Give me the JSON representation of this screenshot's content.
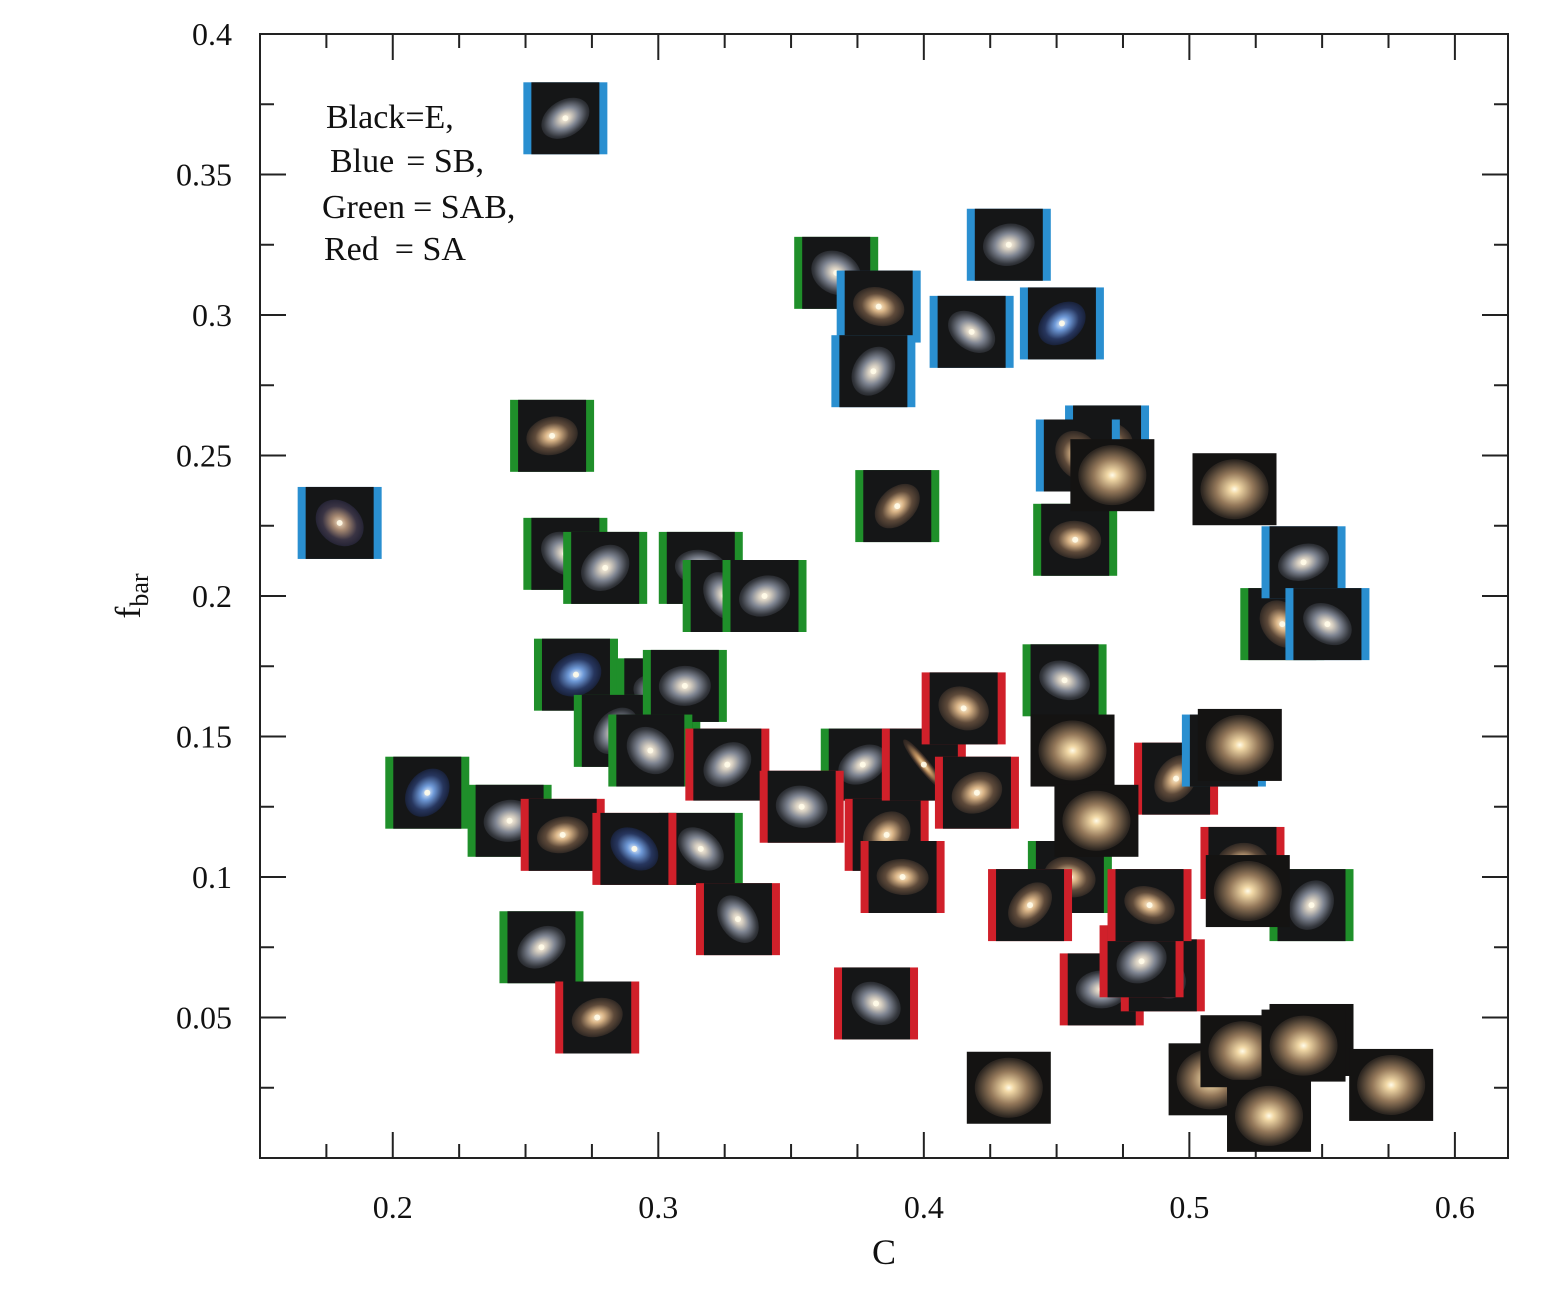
{
  "chart_data": {
    "type": "scatter",
    "title": "",
    "xlabel": "C",
    "ylabel_main": "f",
    "ylabel_sub": "bar",
    "xlim": [
      0.15,
      0.62
    ],
    "ylim": [
      0.0,
      0.4
    ],
    "x_ticks": [
      0.2,
      0.3,
      0.4,
      0.5,
      0.6
    ],
    "x_tick_labels": [
      "0.2",
      "0.3",
      "0.4",
      "0.5",
      "0.6"
    ],
    "y_ticks": [
      0.05,
      0.1,
      0.15,
      0.2,
      0.25,
      0.3,
      0.35,
      0.4
    ],
    "y_tick_labels": [
      "0.05",
      "0.1",
      "0.15",
      "0.2",
      "0.25",
      "0.3",
      "0.35",
      "0.4"
    ],
    "grid": false,
    "legend": {
      "placement": "top-left",
      "lines": [
        [
          "Black",
          "=E,"
        ],
        [
          "Blue",
          "= SB,"
        ],
        [
          "Green",
          "= SAB,"
        ],
        [
          "Red",
          "= SA"
        ]
      ]
    },
    "marker": "galaxy thumbnail images with colored side borders",
    "colors": {
      "E": "#111111",
      "SB": "#2a8fd0",
      "SAB": "#1f8f2a",
      "SA": "#d0202a"
    },
    "series": [
      {
        "name": "SB",
        "points": [
          {
            "x": 0.18,
            "y": 0.226,
            "tone": "warm-faint"
          },
          {
            "x": 0.265,
            "y": 0.37,
            "tone": "spiral"
          },
          {
            "x": 0.383,
            "y": 0.303,
            "tone": "warm"
          },
          {
            "x": 0.381,
            "y": 0.28,
            "tone": "spiral"
          },
          {
            "x": 0.432,
            "y": 0.325,
            "tone": "spiral"
          },
          {
            "x": 0.418,
            "y": 0.294,
            "tone": "spiral"
          },
          {
            "x": 0.452,
            "y": 0.297,
            "tone": "blue"
          },
          {
            "x": 0.469,
            "y": 0.255,
            "tone": "warm"
          },
          {
            "x": 0.458,
            "y": 0.25,
            "tone": "warm"
          },
          {
            "x": 0.543,
            "y": 0.212,
            "tone": "spiral"
          },
          {
            "x": 0.552,
            "y": 0.19,
            "tone": "spiral"
          },
          {
            "x": 0.513,
            "y": 0.145,
            "tone": "warm"
          }
        ]
      },
      {
        "name": "SAB",
        "points": [
          {
            "x": 0.26,
            "y": 0.257,
            "tone": "warm"
          },
          {
            "x": 0.265,
            "y": 0.215,
            "tone": "spiral"
          },
          {
            "x": 0.28,
            "y": 0.21,
            "tone": "spiral"
          },
          {
            "x": 0.316,
            "y": 0.21,
            "tone": "spiral"
          },
          {
            "x": 0.325,
            "y": 0.2,
            "tone": "spiral"
          },
          {
            "x": 0.34,
            "y": 0.2,
            "tone": "spiral"
          },
          {
            "x": 0.367,
            "y": 0.315,
            "tone": "spiral"
          },
          {
            "x": 0.39,
            "y": 0.232,
            "tone": "warm"
          },
          {
            "x": 0.457,
            "y": 0.22,
            "tone": "warm"
          },
          {
            "x": 0.535,
            "y": 0.19,
            "tone": "warm"
          },
          {
            "x": 0.269,
            "y": 0.172,
            "tone": "blue"
          },
          {
            "x": 0.3,
            "y": 0.165,
            "tone": "spiral"
          },
          {
            "x": 0.284,
            "y": 0.152,
            "tone": "spiral"
          },
          {
            "x": 0.31,
            "y": 0.168,
            "tone": "spiral"
          },
          {
            "x": 0.297,
            "y": 0.145,
            "tone": "spiral"
          },
          {
            "x": 0.377,
            "y": 0.14,
            "tone": "spiral"
          },
          {
            "x": 0.453,
            "y": 0.17,
            "tone": "spiral"
          },
          {
            "x": 0.213,
            "y": 0.13,
            "tone": "blue"
          },
          {
            "x": 0.244,
            "y": 0.12,
            "tone": "spiral"
          },
          {
            "x": 0.316,
            "y": 0.11,
            "tone": "spiral"
          },
          {
            "x": 0.256,
            "y": 0.075,
            "tone": "spiral"
          },
          {
            "x": 0.455,
            "y": 0.1,
            "tone": "warm"
          },
          {
            "x": 0.546,
            "y": 0.09,
            "tone": "spiral"
          }
        ]
      },
      {
        "name": "SA",
        "points": [
          {
            "x": 0.264,
            "y": 0.115,
            "tone": "warm"
          },
          {
            "x": 0.291,
            "y": 0.11,
            "tone": "blue"
          },
          {
            "x": 0.326,
            "y": 0.14,
            "tone": "spiral"
          },
          {
            "x": 0.354,
            "y": 0.125,
            "tone": "spiral"
          },
          {
            "x": 0.33,
            "y": 0.085,
            "tone": "spiral"
          },
          {
            "x": 0.277,
            "y": 0.05,
            "tone": "warm"
          },
          {
            "x": 0.382,
            "y": 0.055,
            "tone": "spiral"
          },
          {
            "x": 0.386,
            "y": 0.115,
            "tone": "warm"
          },
          {
            "x": 0.392,
            "y": 0.1,
            "tone": "warm"
          },
          {
            "x": 0.4,
            "y": 0.14,
            "tone": "edge"
          },
          {
            "x": 0.42,
            "y": 0.13,
            "tone": "warm"
          },
          {
            "x": 0.415,
            "y": 0.16,
            "tone": "warm"
          },
          {
            "x": 0.44,
            "y": 0.09,
            "tone": "warm"
          },
          {
            "x": 0.467,
            "y": 0.06,
            "tone": "spiral"
          },
          {
            "x": 0.49,
            "y": 0.065,
            "tone": "spiral"
          },
          {
            "x": 0.482,
            "y": 0.07,
            "tone": "spiral"
          },
          {
            "x": 0.485,
            "y": 0.09,
            "tone": "warm"
          },
          {
            "x": 0.495,
            "y": 0.135,
            "tone": "warm"
          },
          {
            "x": 0.52,
            "y": 0.105,
            "tone": "warm"
          }
        ]
      },
      {
        "name": "E",
        "points": [
          {
            "x": 0.517,
            "y": 0.238
          },
          {
            "x": 0.471,
            "y": 0.243
          },
          {
            "x": 0.456,
            "y": 0.145
          },
          {
            "x": 0.519,
            "y": 0.147
          },
          {
            "x": 0.465,
            "y": 0.12
          },
          {
            "x": 0.522,
            "y": 0.095
          },
          {
            "x": 0.432,
            "y": 0.025
          },
          {
            "x": 0.508,
            "y": 0.028
          },
          {
            "x": 0.52,
            "y": 0.038
          },
          {
            "x": 0.546,
            "y": 0.042
          },
          {
            "x": 0.543,
            "y": 0.04
          },
          {
            "x": 0.53,
            "y": 0.015
          },
          {
            "x": 0.576,
            "y": 0.026
          }
        ]
      }
    ]
  }
}
